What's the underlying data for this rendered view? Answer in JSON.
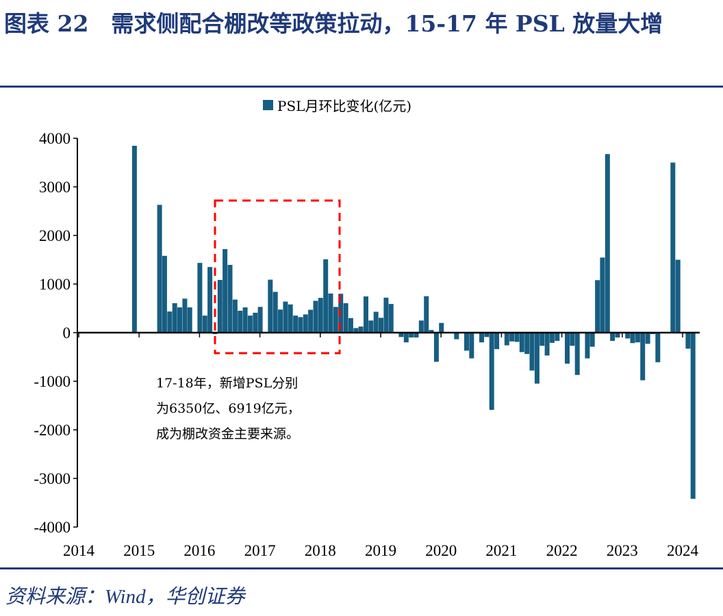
{
  "title": "图表 22　需求侧配合棚改等政策拉动，15-17 年 PSL 放量大增",
  "source": "资料来源：Wind，华创证券",
  "chart_data": {
    "type": "bar",
    "title": "",
    "xlabel": "",
    "ylabel": "",
    "legend": {
      "position": "top-center",
      "entries": [
        "PSL月环比变化(亿元)"
      ]
    },
    "series": [
      {
        "name": "PSL月环比变化(亿元)",
        "color": "#175e82",
        "start_month": "2014-12",
        "frequency": "monthly",
        "values": [
          3845,
          0,
          0,
          0,
          0,
          2630,
          1580,
          435,
          605,
          520,
          700,
          520,
          0,
          1435,
          350,
          1350,
          -30,
          1085,
          1720,
          1395,
          680,
          450,
          520,
          350,
          410,
          530,
          0,
          1090,
          840,
          475,
          640,
          580,
          350,
          320,
          375,
          470,
          655,
          715,
          1510,
          805,
          530,
          800,
          605,
          300,
          95,
          125,
          745,
          250,
          430,
          305,
          720,
          590,
          0,
          -90,
          -200,
          -100,
          -100,
          250,
          750,
          55,
          -600,
          200,
          0,
          0,
          -135,
          0,
          -370,
          -530,
          -20,
          -200,
          -90,
          -1590,
          -340,
          0,
          -260,
          -180,
          -190,
          -400,
          -440,
          -780,
          -1050,
          -270,
          -470,
          -210,
          -170,
          -10,
          -640,
          -270,
          -870,
          0,
          -530,
          -290,
          1080,
          1545,
          3675,
          -170,
          -100,
          0,
          -120,
          -215,
          -200,
          -980,
          -230,
          -30,
          -610,
          0,
          0,
          3500,
          1500,
          0,
          -330,
          -3420
        ]
      }
    ],
    "ylim": [
      -4000,
      4000
    ],
    "yticks": [
      "4000",
      "3000",
      "2000",
      "1000",
      "0",
      "-1000",
      "-2000",
      "-3000",
      "-4000"
    ],
    "xticks": [
      "2014",
      "2015",
      "2016",
      "2017",
      "2018",
      "2019",
      "2020",
      "2021",
      "2022",
      "2023",
      "2024"
    ],
    "grid": false,
    "annotation": {
      "highlight_box": "2016-05 to 2018-05",
      "box_color": "#ff0000",
      "lines": [
        "17-18年，新增PSL分别",
        "为6350亿、6919亿元，",
        "成为棚改资金主要来源。"
      ]
    }
  }
}
